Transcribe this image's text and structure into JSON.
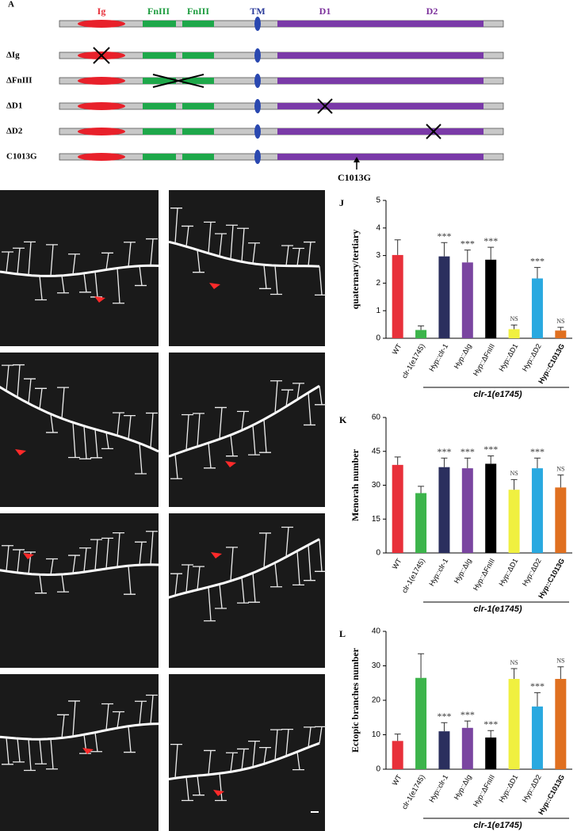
{
  "panel_a": {
    "label": "A",
    "domains": [
      "Ig",
      "FnIII",
      "FnIII",
      "TM",
      "D1",
      "D2"
    ],
    "constructs": [
      "ΔIg",
      "ΔFnIII",
      "ΔD1",
      "ΔD2",
      "C1013G"
    ],
    "mutation_label": "C1013G"
  },
  "chart_data": [
    {
      "type": "bar",
      "panel_label": "J",
      "ylabel": "quaternary/tertiary",
      "categories": [
        "WT",
        "clr-1(e1745)",
        "Hyp::clr-1",
        "Hyp::ΔIg",
        "Hyp::ΔFnIII",
        "Hyp::ΔD1",
        "Hyp::ΔD2",
        "Hyp::C1013G"
      ],
      "values": [
        3.02,
        0.3,
        2.97,
        2.75,
        2.85,
        0.33,
        2.17,
        0.28
      ],
      "errors": [
        0.55,
        0.15,
        0.5,
        0.45,
        0.45,
        0.15,
        0.4,
        0.12
      ],
      "colors": [
        "#e8303a",
        "#3cb44b",
        "#2b2f5e",
        "#7a45a0",
        "#000000",
        "#f0f040",
        "#29a9e0",
        "#e07020"
      ],
      "annotations": [
        null,
        null,
        "***",
        "***",
        "***",
        "NS",
        "***",
        "NS"
      ],
      "group_label": "clr-1(e1745)",
      "ylim": [
        0,
        5
      ],
      "yticks": [
        0,
        1,
        2,
        3,
        4,
        5
      ]
    },
    {
      "type": "bar",
      "panel_label": "K",
      "ylabel": "Menorah number",
      "categories": [
        "WT",
        "clr-1(e1745)",
        "Hyp::clr-1",
        "Hyp::ΔIg",
        "Hyp::ΔFnIII",
        "Hyp::ΔD1",
        "Hyp::ΔD2",
        "Hyp::C1013G"
      ],
      "values": [
        39,
        26.5,
        38,
        37.5,
        39.5,
        28,
        37.5,
        29
      ],
      "errors": [
        3.5,
        3,
        4,
        4.5,
        3.5,
        4.5,
        4.5,
        5.5
      ],
      "colors": [
        "#e8303a",
        "#3cb44b",
        "#2b2f5e",
        "#7a45a0",
        "#000000",
        "#f0f040",
        "#29a9e0",
        "#e07020"
      ],
      "annotations": [
        null,
        null,
        "***",
        "***",
        "***",
        "NS",
        "***",
        "NS"
      ],
      "group_label": "clr-1(e1745)",
      "ylim": [
        0,
        60
      ],
      "yticks": [
        0,
        15,
        30,
        45,
        60
      ]
    },
    {
      "type": "bar",
      "panel_label": "L",
      "ylabel": "Ectopic branches number",
      "categories": [
        "WT",
        "clr-1(e1745)",
        "Hyp::clr-1",
        "Hyp::ΔIg",
        "Hyp::ΔFnIII",
        "Hyp::ΔD1",
        "Hyp::ΔD2",
        "Hyp::C1013G"
      ],
      "values": [
        8.2,
        26.5,
        11,
        12,
        9.2,
        26.2,
        18.2,
        26.2
      ],
      "errors": [
        2,
        7,
        2.5,
        2,
        2,
        3,
        4,
        3.5
      ],
      "colors": [
        "#e8303a",
        "#3cb44b",
        "#2b2f5e",
        "#7a45a0",
        "#000000",
        "#f0f040",
        "#29a9e0",
        "#e07020"
      ],
      "annotations": [
        null,
        null,
        "***",
        "***",
        "***",
        "NS",
        "***",
        "NS"
      ],
      "group_label": "clr-1(e1745)",
      "ylim": [
        0,
        40
      ],
      "yticks": [
        0,
        10,
        20,
        30,
        40
      ]
    }
  ]
}
